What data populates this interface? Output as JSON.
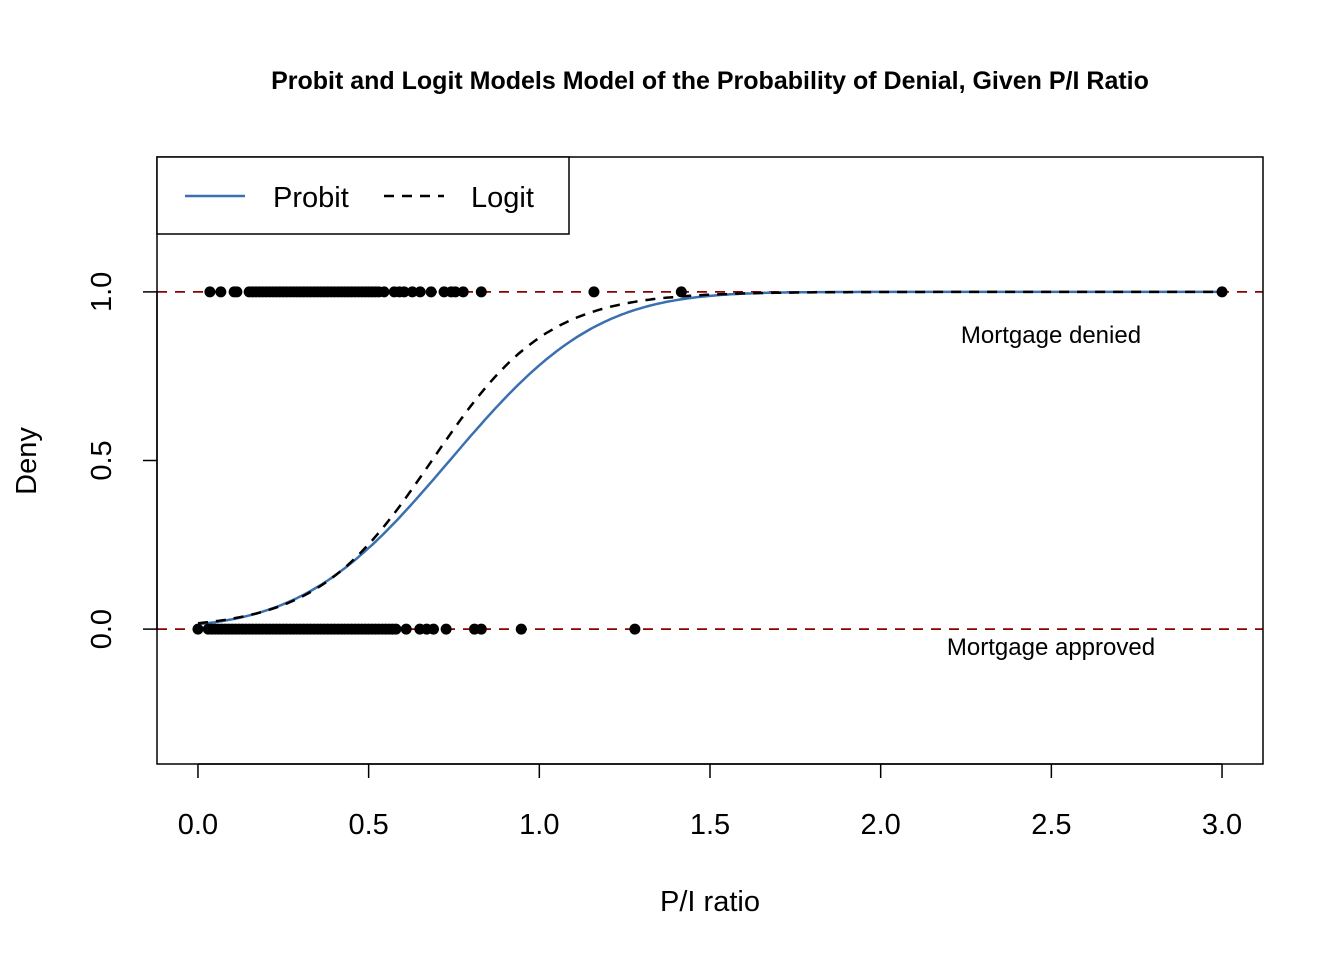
{
  "chart_data": {
    "type": "scatter",
    "title": "Probit and Logit Models Model of the Probability of Denial, Given P/I Ratio",
    "xlabel": "P/I ratio",
    "ylabel": "Deny",
    "xlim": [
      -0.12,
      3.12
    ],
    "ylim": [
      -0.4,
      1.4
    ],
    "xticks": [
      "0.0",
      "0.5",
      "1.0",
      "1.5",
      "2.0",
      "2.5",
      "3.0"
    ],
    "yticks": [
      "0.0",
      "0.5",
      "1.0"
    ],
    "grid": false,
    "legend": {
      "position": "top-left",
      "entries": [
        "Probit",
        "Logit"
      ]
    },
    "points": {
      "denied_x": [
        0.035,
        0.067,
        0.106,
        0.114,
        0.15,
        0.16,
        0.17,
        0.18,
        0.19,
        0.2,
        0.21,
        0.22,
        0.23,
        0.24,
        0.25,
        0.26,
        0.27,
        0.28,
        0.29,
        0.3,
        0.31,
        0.32,
        0.33,
        0.34,
        0.35,
        0.36,
        0.37,
        0.38,
        0.39,
        0.4,
        0.41,
        0.42,
        0.43,
        0.44,
        0.45,
        0.46,
        0.47,
        0.48,
        0.49,
        0.5,
        0.51,
        0.52,
        0.53,
        0.545,
        0.575,
        0.59,
        0.604,
        0.628,
        0.651,
        0.683,
        0.721,
        0.742,
        0.754,
        0.777,
        0.83,
        1.16,
        1.416,
        3.0
      ],
      "approved_x": [
        0.0,
        0.03,
        0.04,
        0.05,
        0.06,
        0.07,
        0.08,
        0.09,
        0.1,
        0.11,
        0.12,
        0.13,
        0.14,
        0.15,
        0.16,
        0.17,
        0.18,
        0.19,
        0.2,
        0.21,
        0.22,
        0.23,
        0.24,
        0.25,
        0.26,
        0.27,
        0.28,
        0.29,
        0.3,
        0.31,
        0.32,
        0.33,
        0.34,
        0.35,
        0.36,
        0.37,
        0.38,
        0.39,
        0.4,
        0.41,
        0.42,
        0.43,
        0.44,
        0.45,
        0.46,
        0.47,
        0.48,
        0.49,
        0.5,
        0.51,
        0.52,
        0.53,
        0.54,
        0.55,
        0.56,
        0.57,
        0.58,
        0.61,
        0.65,
        0.67,
        0.69,
        0.727,
        0.81,
        0.83,
        0.947,
        1.28
      ]
    },
    "series": [
      {
        "name": "Probit",
        "model": "probit",
        "intercept": -2.19,
        "slope": 2.97,
        "color": "#3a6fb0",
        "style": "solid"
      },
      {
        "name": "Logit",
        "model": "logit",
        "intercept": -4.03,
        "slope": 5.88,
        "color": "#000000",
        "style": "dashed"
      }
    ],
    "reference_lines": [
      {
        "y": 0,
        "color": "#8b0000"
      },
      {
        "y": 1,
        "color": "#8b0000"
      }
    ],
    "annotations": [
      {
        "text": "Mortgage denied",
        "x": 2.5,
        "y": 0.9
      },
      {
        "text": "Mortgage approved",
        "x": 2.5,
        "y": -0.1
      }
    ]
  }
}
